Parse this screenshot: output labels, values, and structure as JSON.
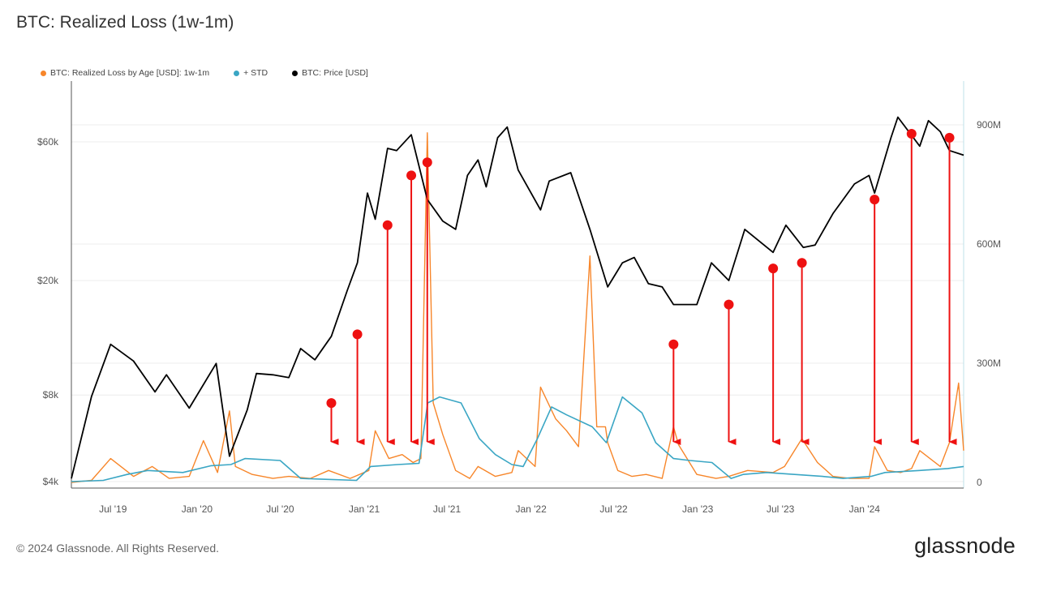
{
  "title": "BTC: Realized Loss (1w-1m)",
  "legend": [
    {
      "label": "BTC: Realized Loss by Age [USD]: 1w-1m",
      "color": "#f7862a"
    },
    {
      "label": "+ STD",
      "color": "#3aa6c4"
    },
    {
      "label": "BTC: Price [USD]",
      "color": "#000000"
    }
  ],
  "footer": "© 2024 Glassnode. All Rights Reserved.",
  "brand": "glassnode",
  "chart_data": {
    "type": "line",
    "x_tick_labels": [
      "Jul '19",
      "Jan '20",
      "Jul '20",
      "Jan '21",
      "Jul '21",
      "Jan '22",
      "Jul '22",
      "Jan '23",
      "Jul '23",
      "Jan '24"
    ],
    "y_left_tick_labels": [
      "$4k",
      "$8k",
      "$20k",
      "$60k"
    ],
    "y_left_scale": "log",
    "y_right_tick_labels": [
      "0",
      "300M",
      "600M",
      "900M"
    ],
    "y_right_range": [
      0,
      1000000000
    ],
    "grid": "horizontal",
    "legend_position": "top-left",
    "x_range": [
      "2019-04-01",
      "2024-08-05"
    ],
    "series": [
      {
        "name": "BTC: Price [USD]",
        "axis": "left",
        "color": "#000000",
        "x": [
          "2019-04-01",
          "2019-05-15",
          "2019-06-26",
          "2019-08-15",
          "2019-10-01",
          "2019-10-26",
          "2019-12-15",
          "2020-02-12",
          "2020-03-12",
          "2020-04-20",
          "2020-05-10",
          "2020-06-15",
          "2020-07-20",
          "2020-08-15",
          "2020-09-15",
          "2020-10-21",
          "2020-11-25",
          "2020-12-17",
          "2021-01-08",
          "2021-01-25",
          "2021-02-21",
          "2021-03-13",
          "2021-04-14",
          "2021-05-19",
          "2021-06-22",
          "2021-07-20",
          "2021-08-15",
          "2021-09-07",
          "2021-09-25",
          "2021-10-20",
          "2021-11-10",
          "2021-12-04",
          "2022-01-22",
          "2022-02-10",
          "2022-03-29",
          "2022-05-10",
          "2022-06-18",
          "2022-07-20",
          "2022-08-15",
          "2022-09-15",
          "2022-10-15",
          "2022-11-09",
          "2022-12-30",
          "2023-01-31",
          "2023-03-10",
          "2023-04-14",
          "2023-06-15",
          "2023-07-13",
          "2023-08-20",
          "2023-09-15",
          "2023-10-24",
          "2023-12-10",
          "2024-01-11",
          "2024-01-23",
          "2024-02-28",
          "2024-03-14",
          "2024-05-01",
          "2024-05-20",
          "2024-06-15",
          "2024-07-05",
          "2024-08-05"
        ],
        "y": [
          4100,
          7900,
          12000,
          10500,
          8200,
          9400,
          7200,
          10300,
          4900,
          7100,
          9500,
          9400,
          9200,
          11600,
          10600,
          12800,
          18500,
          23000,
          40000,
          32500,
          57000,
          56000,
          63500,
          38000,
          32000,
          30000,
          46000,
          52000,
          42000,
          62000,
          67500,
          48000,
          35000,
          44000,
          47000,
          30000,
          19000,
          23000,
          24000,
          19500,
          19000,
          16500,
          16500,
          23000,
          20000,
          30000,
          25000,
          31000,
          26000,
          26500,
          34000,
          43000,
          46000,
          40000,
          62000,
          73000,
          58000,
          71000,
          65000,
          56000,
          54000
        ]
      },
      {
        "name": "+ STD",
        "axis": "right",
        "color": "#3aa6c4",
        "x": [
          "2019-04-01",
          "2019-06-10",
          "2019-08-01",
          "2019-09-15",
          "2019-12-01",
          "2020-02-01",
          "2020-03-15",
          "2020-04-15",
          "2020-07-01",
          "2020-08-15",
          "2020-10-01",
          "2020-12-15",
          "2021-01-15",
          "2021-03-15",
          "2021-05-01",
          "2021-05-20",
          "2021-06-15",
          "2021-08-01",
          "2021-09-10",
          "2021-10-15",
          "2021-11-20",
          "2021-12-15",
          "2022-01-15",
          "2022-02-15",
          "2022-03-20",
          "2022-05-15",
          "2022-06-15",
          "2022-07-20",
          "2022-09-01",
          "2022-10-01",
          "2022-11-09",
          "2022-12-15",
          "2023-02-01",
          "2023-03-15",
          "2023-04-10",
          "2023-06-01",
          "2023-08-01",
          "2023-10-01",
          "2023-11-15",
          "2024-01-15",
          "2024-02-15",
          "2024-05-01",
          "2024-07-01",
          "2024-08-05"
        ],
        "y": [
          2000000,
          5000000,
          20000000,
          30000000,
          25000000,
          42000000,
          45000000,
          60000000,
          55000000,
          10000000,
          8000000,
          5000000,
          40000000,
          45000000,
          48000000,
          200000000,
          215000000,
          200000000,
          110000000,
          70000000,
          45000000,
          40000000,
          110000000,
          190000000,
          170000000,
          140000000,
          100000000,
          215000000,
          175000000,
          100000000,
          60000000,
          55000000,
          50000000,
          10000000,
          20000000,
          25000000,
          20000000,
          15000000,
          10000000,
          15000000,
          25000000,
          30000000,
          35000000,
          40000000
        ]
      },
      {
        "name": "BTC: Realized Loss by Age [USD]: 1w-1m",
        "axis": "right",
        "color": "#f7862a",
        "x": [
          "2019-04-01",
          "2019-05-15",
          "2019-06-26",
          "2019-08-15",
          "2019-09-25",
          "2019-11-01",
          "2019-12-15",
          "2020-01-15",
          "2020-02-15",
          "2020-03-12",
          "2020-03-25",
          "2020-05-01",
          "2020-06-15",
          "2020-07-20",
          "2020-09-05",
          "2020-10-15",
          "2020-12-01",
          "2021-01-11",
          "2021-01-25",
          "2021-02-24",
          "2021-03-25",
          "2021-04-18",
          "2021-05-05",
          "2021-05-19",
          "2021-06-01",
          "2021-06-22",
          "2021-07-20",
          "2021-08-20",
          "2021-09-07",
          "2021-10-15",
          "2021-11-20",
          "2021-12-04",
          "2022-01-10",
          "2022-01-22",
          "2022-02-24",
          "2022-03-20",
          "2022-04-15",
          "2022-05-10",
          "2022-05-25",
          "2022-06-13",
          "2022-06-18",
          "2022-07-10",
          "2022-08-10",
          "2022-09-10",
          "2022-10-15",
          "2022-11-09",
          "2022-11-20",
          "2022-12-30",
          "2023-02-10",
          "2023-03-10",
          "2023-04-20",
          "2023-06-15",
          "2023-07-10",
          "2023-08-17",
          "2023-09-20",
          "2023-10-24",
          "2023-11-30",
          "2024-01-11",
          "2024-01-23",
          "2024-02-20",
          "2024-03-20",
          "2024-04-13",
          "2024-05-01",
          "2024-06-15",
          "2024-07-05",
          "2024-07-25",
          "2024-08-05"
        ],
        "y": [
          0,
          5000000,
          60000000,
          15000000,
          40000000,
          10000000,
          15000000,
          105000000,
          25000000,
          180000000,
          40000000,
          20000000,
          10000000,
          15000000,
          10000000,
          30000000,
          10000000,
          30000000,
          130000000,
          60000000,
          70000000,
          50000000,
          60000000,
          880000000,
          200000000,
          120000000,
          30000000,
          10000000,
          40000000,
          15000000,
          25000000,
          80000000,
          40000000,
          240000000,
          160000000,
          130000000,
          90000000,
          570000000,
          140000000,
          140000000,
          100000000,
          30000000,
          15000000,
          20000000,
          10000000,
          140000000,
          95000000,
          20000000,
          10000000,
          15000000,
          30000000,
          25000000,
          40000000,
          110000000,
          50000000,
          15000000,
          10000000,
          10000000,
          90000000,
          30000000,
          25000000,
          35000000,
          80000000,
          40000000,
          100000000,
          250000000,
          80000000
        ]
      }
    ],
    "arrow_markers": [
      {
        "date": "2020-10-21",
        "price": 7500
      },
      {
        "date": "2020-12-17",
        "price": 13000
      },
      {
        "date": "2021-02-21",
        "price": 31000
      },
      {
        "date": "2021-04-14",
        "price": 46000
      },
      {
        "date": "2021-05-19",
        "price": 51000
      },
      {
        "date": "2022-11-09",
        "price": 12000
      },
      {
        "date": "2023-03-10",
        "price": 16500
      },
      {
        "date": "2023-06-15",
        "price": 22000
      },
      {
        "date": "2023-08-17",
        "price": 23000
      },
      {
        "date": "2024-01-23",
        "price": 38000
      },
      {
        "date": "2024-04-13",
        "price": 64000
      },
      {
        "date": "2024-07-05",
        "price": 62000
      }
    ],
    "marker_color": "#ee1111"
  }
}
